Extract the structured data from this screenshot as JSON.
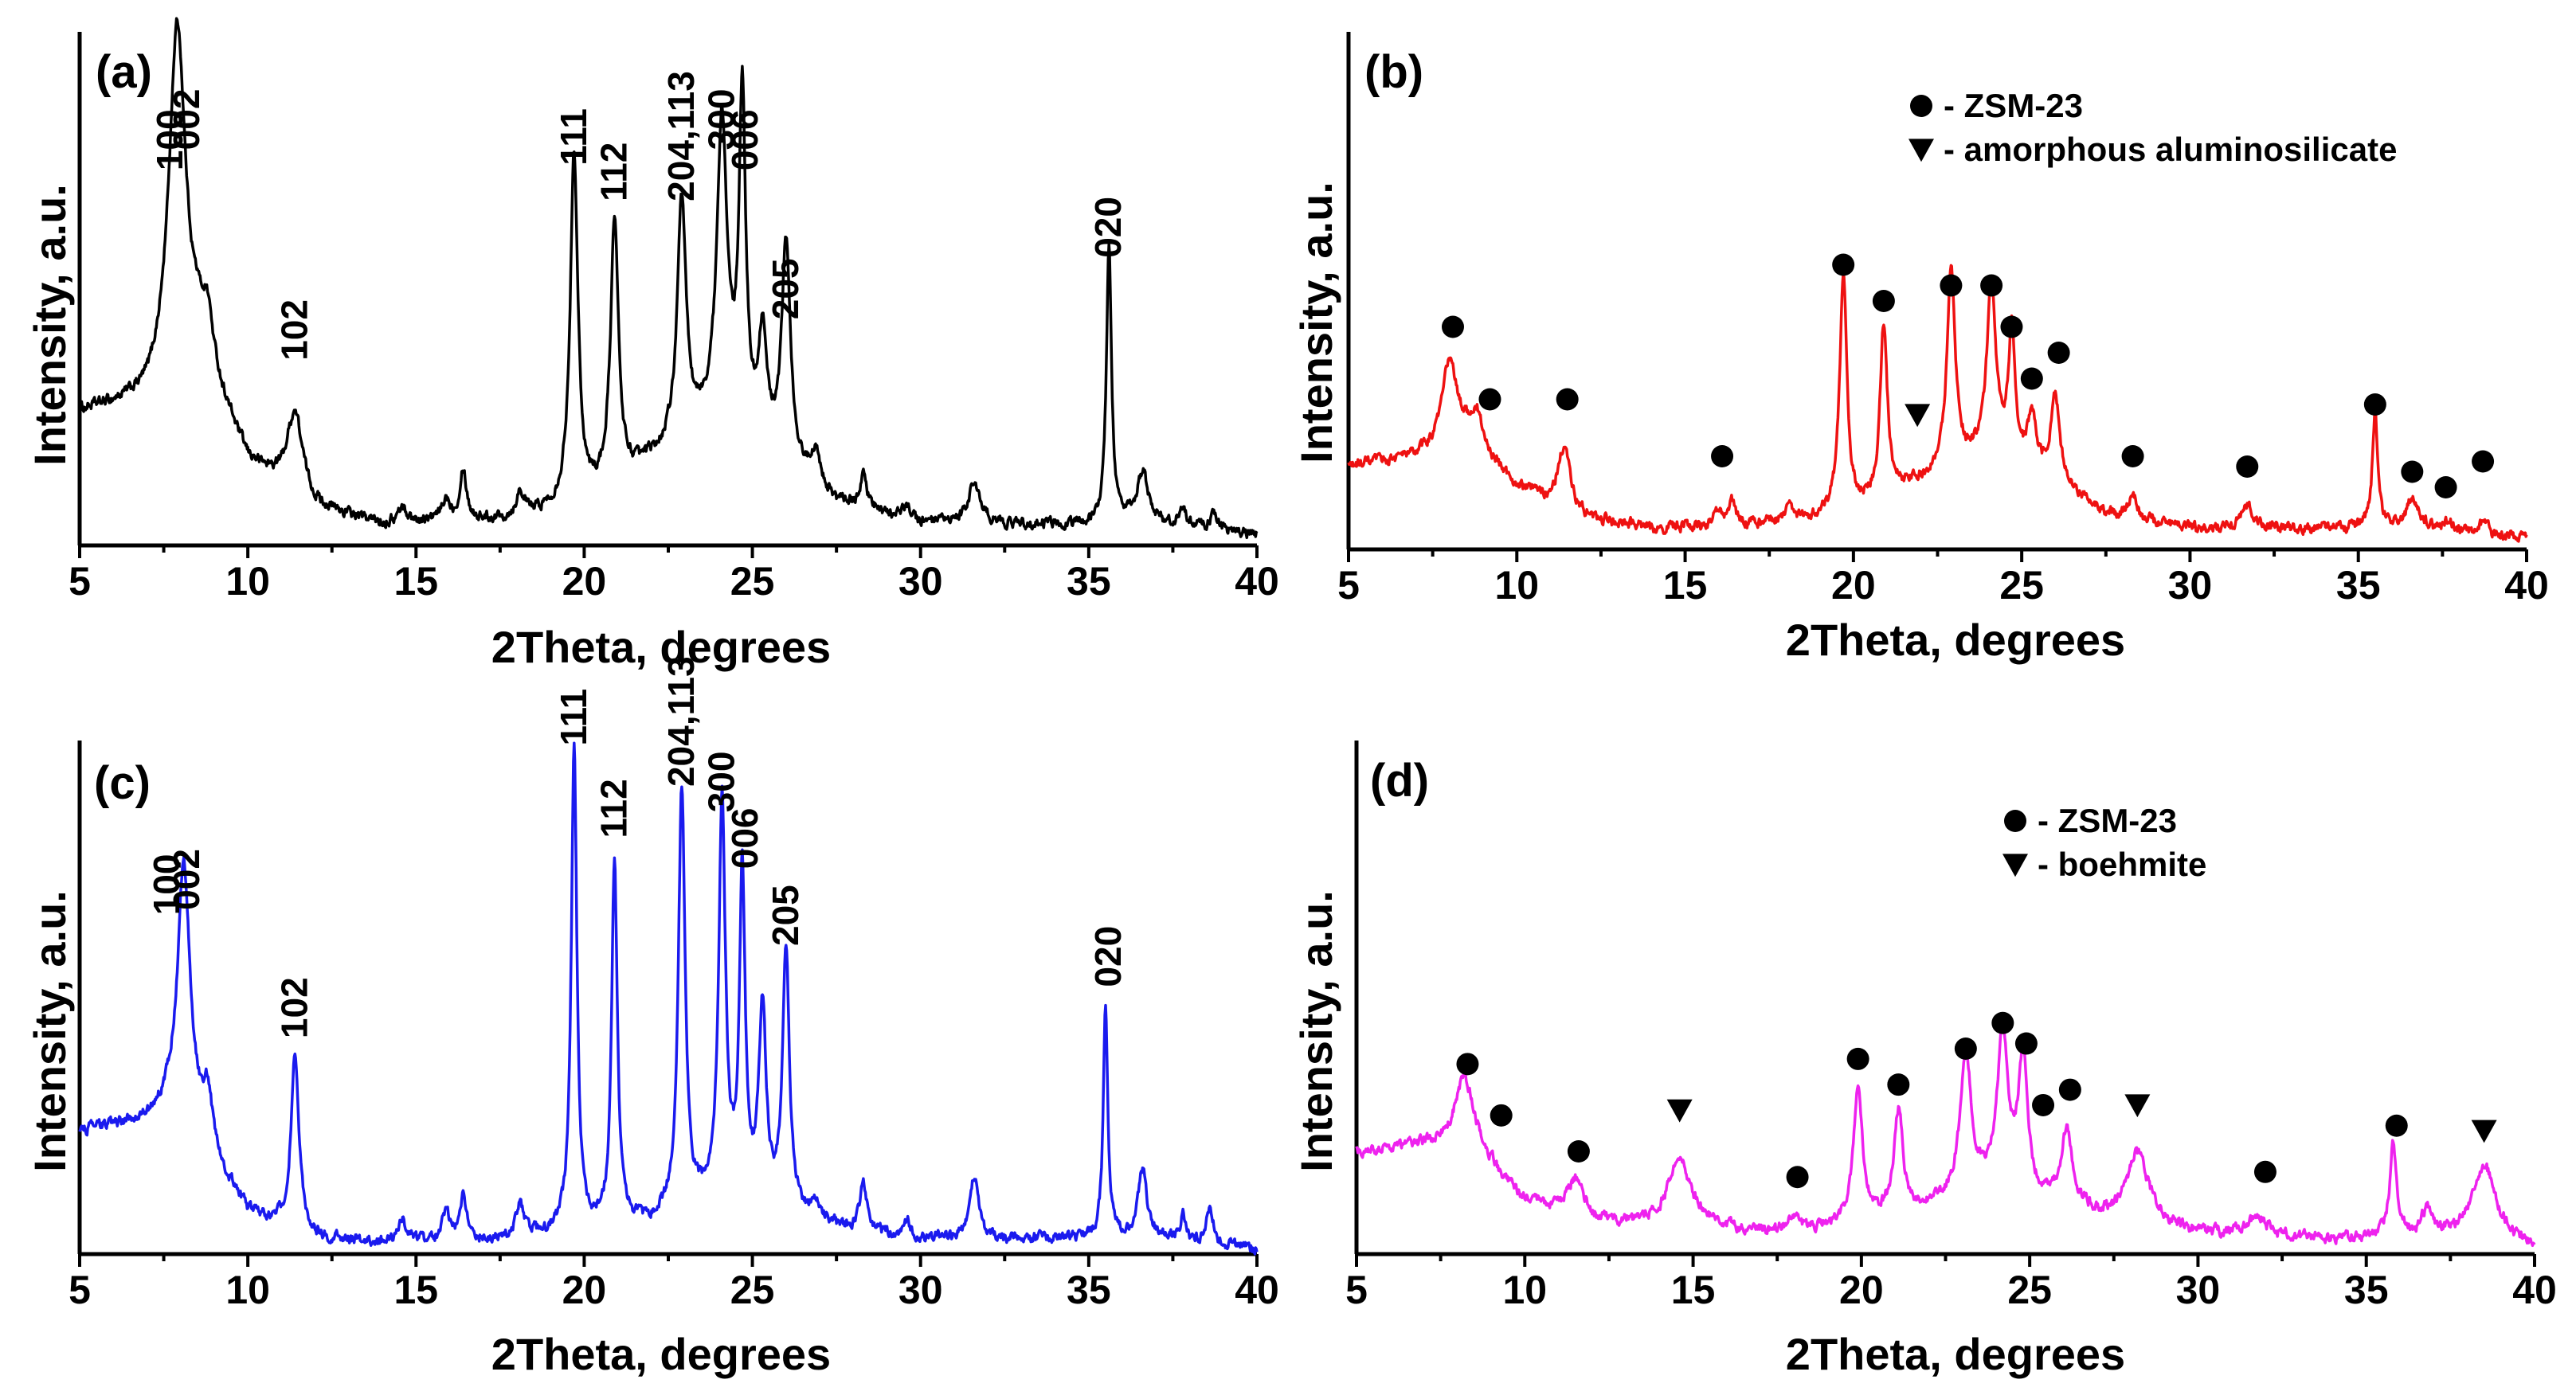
{
  "chart_data": [
    {
      "type": "line",
      "panel_label": "(a)",
      "xlabel": "2Theta, degrees",
      "ylabel": "Intensity, a.u.",
      "xlim": [
        5,
        40
      ],
      "ylim": [
        0,
        100
      ],
      "xticks": [
        5,
        10,
        15,
        20,
        25,
        30,
        35,
        40
      ],
      "color": "#000000",
      "baseline": [
        [
          5,
          26
        ],
        [
          7,
          28
        ],
        [
          8.5,
          37
        ],
        [
          10,
          16
        ],
        [
          12,
          7
        ],
        [
          14,
          4
        ],
        [
          18,
          5
        ],
        [
          20,
          8
        ],
        [
          22,
          16
        ],
        [
          24,
          24
        ],
        [
          26,
          16
        ],
        [
          27.5,
          8
        ],
        [
          30,
          4
        ],
        [
          33,
          4
        ],
        [
          37,
          4
        ],
        [
          40,
          2
        ]
      ],
      "peaks": [
        [
          7.9,
          68,
          0.3
        ],
        [
          8.8,
          10,
          0.2
        ],
        [
          11.4,
          16,
          0.28
        ],
        [
          14.6,
          3,
          0.15
        ],
        [
          15.9,
          4,
          0.15
        ],
        [
          16.4,
          10,
          0.12
        ],
        [
          18.1,
          5,
          0.15
        ],
        [
          19.7,
          68,
          0.14
        ],
        [
          20.9,
          51,
          0.14
        ],
        [
          22.9,
          46,
          0.16
        ],
        [
          24.1,
          58,
          0.18
        ],
        [
          24.7,
          64,
          0.12
        ],
        [
          25.3,
          20,
          0.15
        ],
        [
          26.0,
          42,
          0.15
        ],
        [
          26.9,
          7,
          0.15
        ],
        [
          28.3,
          7,
          0.12
        ],
        [
          29.6,
          3,
          0.15
        ],
        [
          31.6,
          8,
          0.22
        ],
        [
          35.6,
          55,
          0.09
        ],
        [
          36.6,
          10,
          0.2
        ],
        [
          37.8,
          4,
          0.12
        ],
        [
          38.7,
          3,
          0.15
        ]
      ],
      "peak_labels": [
        {
          "text": "100",
          "x": 7.7,
          "y": 73
        },
        {
          "text": "002",
          "x": 8.2,
          "y": 77
        },
        {
          "text": "102",
          "x": 11.4,
          "y": 36
        },
        {
          "text": "111",
          "x": 19.7,
          "y": 74
        },
        {
          "text": "112",
          "x": 20.9,
          "y": 67
        },
        {
          "text": "204,113",
          "x": 22.9,
          "y": 67
        },
        {
          "text": "300",
          "x": 24.1,
          "y": 77
        },
        {
          "text": "006",
          "x": 24.8,
          "y": 73
        },
        {
          "text": "205",
          "x": 26.0,
          "y": 44
        },
        {
          "text": "020",
          "x": 35.6,
          "y": 56
        }
      ],
      "markers": [],
      "legend": []
    },
    {
      "type": "line",
      "panel_label": "(b)",
      "xlabel": "2Theta, degrees",
      "ylabel": "Intensity, a.u.",
      "xlim": [
        5,
        40
      ],
      "ylim": [
        0,
        100
      ],
      "xticks": [
        5,
        10,
        15,
        20,
        25,
        30,
        35,
        40
      ],
      "color": "#ee1111",
      "baseline": [
        [
          5,
          16
        ],
        [
          7,
          18
        ],
        [
          8.5,
          22
        ],
        [
          10,
          12
        ],
        [
          12,
          6
        ],
        [
          14,
          4
        ],
        [
          18,
          5
        ],
        [
          20,
          7
        ],
        [
          22,
          13
        ],
        [
          24,
          18
        ],
        [
          26,
          13
        ],
        [
          27.5,
          7
        ],
        [
          30,
          4
        ],
        [
          33,
          4
        ],
        [
          37,
          4
        ],
        [
          40,
          2
        ]
      ],
      "peaks": [
        [
          8.0,
          16,
          0.25
        ],
        [
          8.8,
          6,
          0.2
        ],
        [
          11.4,
          12,
          0.22
        ],
        [
          16.0,
          3,
          0.15
        ],
        [
          16.4,
          4,
          0.12
        ],
        [
          18.1,
          4,
          0.15
        ],
        [
          19.7,
          46,
          0.13
        ],
        [
          20.9,
          33,
          0.13
        ],
        [
          22.9,
          38,
          0.15
        ],
        [
          24.1,
          33,
          0.16
        ],
        [
          24.7,
          25,
          0.12
        ],
        [
          25.3,
          10,
          0.15
        ],
        [
          26.0,
          16,
          0.15
        ],
        [
          28.3,
          5,
          0.12
        ],
        [
          31.7,
          5,
          0.2
        ],
        [
          35.5,
          22,
          0.1
        ],
        [
          36.6,
          6,
          0.2
        ],
        [
          37.7,
          2,
          0.15
        ],
        [
          38.7,
          2,
          0.15
        ]
      ],
      "peak_labels": [],
      "markers": [
        {
          "shape": "circle",
          "x": 8.1,
          "y": 43
        },
        {
          "shape": "circle",
          "x": 9.2,
          "y": 29
        },
        {
          "shape": "circle",
          "x": 11.5,
          "y": 29
        },
        {
          "shape": "circle",
          "x": 16.1,
          "y": 18
        },
        {
          "shape": "circle",
          "x": 19.7,
          "y": 55
        },
        {
          "shape": "circle",
          "x": 20.9,
          "y": 48
        },
        {
          "shape": "circle",
          "x": 22.9,
          "y": 51
        },
        {
          "shape": "circle",
          "x": 24.1,
          "y": 51
        },
        {
          "shape": "circle",
          "x": 24.7,
          "y": 43
        },
        {
          "shape": "circle",
          "x": 25.3,
          "y": 33
        },
        {
          "shape": "circle",
          "x": 26.1,
          "y": 38
        },
        {
          "shape": "circle",
          "x": 28.3,
          "y": 18
        },
        {
          "shape": "circle",
          "x": 31.7,
          "y": 16
        },
        {
          "shape": "circle",
          "x": 35.5,
          "y": 28
        },
        {
          "shape": "circle",
          "x": 36.6,
          "y": 15
        },
        {
          "shape": "circle",
          "x": 37.6,
          "y": 12
        },
        {
          "shape": "circle",
          "x": 38.7,
          "y": 17
        },
        {
          "shape": "triangle",
          "x": 21.9,
          "y": 26
        }
      ],
      "legend": [
        {
          "shape": "circle",
          "text": "- ZSM-23"
        },
        {
          "shape": "triangle",
          "text": "- amorphous aluminosilicate"
        }
      ]
    },
    {
      "type": "line",
      "panel_label": "(c)",
      "xlabel": "2Theta, degrees",
      "ylabel": "Intensity, a.u.",
      "xlim": [
        5,
        40
      ],
      "ylim": [
        0,
        100
      ],
      "xticks": [
        5,
        10,
        15,
        20,
        25,
        30,
        35,
        40
      ],
      "color": "#1a1aee",
      "baseline": [
        [
          5,
          24
        ],
        [
          7,
          26
        ],
        [
          8,
          30
        ],
        [
          9,
          18
        ],
        [
          10,
          8
        ],
        [
          12,
          3
        ],
        [
          14,
          2
        ],
        [
          18,
          3
        ],
        [
          22,
          6
        ],
        [
          24,
          10
        ],
        [
          26,
          8
        ],
        [
          27.5,
          5
        ],
        [
          30,
          3
        ],
        [
          33,
          3
        ],
        [
          37,
          3
        ],
        [
          40,
          1
        ]
      ],
      "peaks": [
        [
          8.1,
          47,
          0.22
        ],
        [
          8.8,
          10,
          0.18
        ],
        [
          11.4,
          34,
          0.14
        ],
        [
          14.6,
          5,
          0.12
        ],
        [
          15.9,
          6,
          0.13
        ],
        [
          16.4,
          8,
          0.11
        ],
        [
          18.1,
          6,
          0.15
        ],
        [
          19.7,
          94,
          0.1
        ],
        [
          20.9,
          71,
          0.1
        ],
        [
          22.9,
          82,
          0.12
        ],
        [
          24.1,
          77,
          0.12
        ],
        [
          24.7,
          64,
          0.1
        ],
        [
          25.3,
          38,
          0.13
        ],
        [
          26.0,
          50,
          0.12
        ],
        [
          26.9,
          4,
          0.15
        ],
        [
          28.3,
          9,
          0.12
        ],
        [
          29.6,
          3,
          0.12
        ],
        [
          31.6,
          12,
          0.15
        ],
        [
          35.5,
          45,
          0.08
        ],
        [
          36.6,
          13,
          0.16
        ],
        [
          37.8,
          5,
          0.1
        ],
        [
          38.6,
          7,
          0.12
        ]
      ],
      "peak_labels": [
        {
          "text": "100",
          "x": 7.6,
          "y": 66
        },
        {
          "text": "002",
          "x": 8.2,
          "y": 67
        },
        {
          "text": "102",
          "x": 11.4,
          "y": 42
        },
        {
          "text": "111",
          "x": 19.7,
          "y": 99
        },
        {
          "text": "112",
          "x": 20.9,
          "y": 81
        },
        {
          "text": "204,113",
          "x": 22.9,
          "y": 91
        },
        {
          "text": "300",
          "x": 24.1,
          "y": 86
        },
        {
          "text": "006",
          "x": 24.8,
          "y": 75
        },
        {
          "text": "205",
          "x": 26.0,
          "y": 60
        },
        {
          "text": "020",
          "x": 35.6,
          "y": 52
        }
      ],
      "markers": [],
      "legend": []
    },
    {
      "type": "line",
      "panel_label": "(d)",
      "xlabel": "2Theta, degrees",
      "ylabel": "Intensity, a.u.",
      "xlim": [
        5,
        40
      ],
      "ylim": [
        0,
        100
      ],
      "xticks": [
        5,
        10,
        15,
        20,
        25,
        30,
        35,
        40
      ],
      "color": "#ee22ee",
      "baseline": [
        [
          5,
          20
        ],
        [
          7,
          21
        ],
        [
          8.5,
          20
        ],
        [
          10,
          10
        ],
        [
          12,
          6
        ],
        [
          14,
          5
        ],
        [
          18,
          4
        ],
        [
          20,
          6
        ],
        [
          22,
          9
        ],
        [
          24,
          12
        ],
        [
          26,
          9
        ],
        [
          27.5,
          6
        ],
        [
          30,
          4
        ],
        [
          33,
          3
        ],
        [
          37,
          3
        ],
        [
          40,
          1
        ]
      ],
      "peaks": [
        [
          8.2,
          14,
          0.35
        ],
        [
          11.5,
          7,
          0.3
        ],
        [
          14.6,
          13,
          0.45
        ],
        [
          18.0,
          3,
          0.2
        ],
        [
          19.9,
          26,
          0.16
        ],
        [
          21.1,
          20,
          0.16
        ],
        [
          23.1,
          28,
          0.2
        ],
        [
          24.2,
          30,
          0.2
        ],
        [
          24.8,
          26,
          0.16
        ],
        [
          26.1,
          14,
          0.2
        ],
        [
          28.2,
          14,
          0.4
        ],
        [
          31.8,
          4,
          0.3
        ],
        [
          35.8,
          18,
          0.12
        ],
        [
          36.8,
          5,
          0.2
        ],
        [
          38.5,
          15,
          0.45
        ]
      ],
      "peak_labels": [],
      "markers": [
        {
          "shape": "circle",
          "x": 8.3,
          "y": 37
        },
        {
          "shape": "circle",
          "x": 9.3,
          "y": 27
        },
        {
          "shape": "circle",
          "x": 11.6,
          "y": 20
        },
        {
          "shape": "circle",
          "x": 18.1,
          "y": 15
        },
        {
          "shape": "circle",
          "x": 19.9,
          "y": 38
        },
        {
          "shape": "circle",
          "x": 21.1,
          "y": 33
        },
        {
          "shape": "circle",
          "x": 23.1,
          "y": 40
        },
        {
          "shape": "circle",
          "x": 24.2,
          "y": 45
        },
        {
          "shape": "circle",
          "x": 24.9,
          "y": 41
        },
        {
          "shape": "circle",
          "x": 25.4,
          "y": 29
        },
        {
          "shape": "circle",
          "x": 26.2,
          "y": 32
        },
        {
          "shape": "circle",
          "x": 32.0,
          "y": 16
        },
        {
          "shape": "circle",
          "x": 35.9,
          "y": 25
        },
        {
          "shape": "triangle",
          "x": 14.6,
          "y": 28
        },
        {
          "shape": "triangle",
          "x": 28.2,
          "y": 29
        },
        {
          "shape": "triangle",
          "x": 38.5,
          "y": 24
        }
      ],
      "legend": [
        {
          "shape": "circle",
          "text": "- ZSM-23"
        },
        {
          "shape": "triangle",
          "text": "- boehmite"
        }
      ]
    }
  ]
}
